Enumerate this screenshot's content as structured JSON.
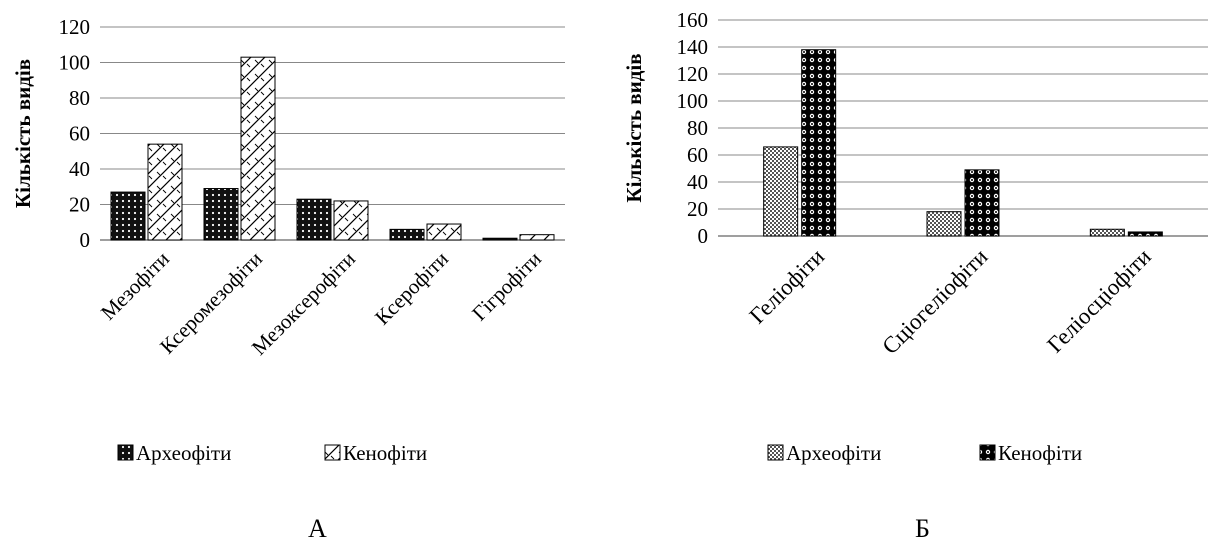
{
  "chart_data": [
    {
      "type": "bar",
      "panel_label": "А",
      "ylabel": "Кількість видів",
      "xlabel": "",
      "categories": [
        "Мезофіти",
        "Ксеромезофіти",
        "Мезоксерофіти",
        "Ксерофіти",
        "Гігрофіти"
      ],
      "series": [
        {
          "name": "Археофіти",
          "values": [
            27,
            29,
            23,
            6,
            1
          ],
          "pattern": "dots-dark"
        },
        {
          "name": "Кенофіти",
          "values": [
            54,
            103,
            22,
            9,
            3
          ],
          "pattern": "diagonal-light"
        }
      ],
      "ylim": [
        0,
        120
      ],
      "yticks": [
        0,
        20,
        40,
        60,
        80,
        100,
        120
      ],
      "grid": true,
      "legend_position": "bottom"
    },
    {
      "type": "bar",
      "panel_label": "Б",
      "ylabel": "Кількість видів",
      "xlabel": "",
      "categories": [
        "Геліофіти",
        "Сціогеліофіти",
        "Геліосціофіти"
      ],
      "series": [
        {
          "name": "Археофіти",
          "values": [
            66,
            18,
            5
          ],
          "pattern": "checker-grey"
        },
        {
          "name": "Кенофіти",
          "values": [
            138,
            49,
            3
          ],
          "pattern": "dots-black"
        }
      ],
      "ylim": [
        0,
        160
      ],
      "yticks": [
        0,
        20,
        40,
        60,
        80,
        100,
        120,
        140,
        160
      ],
      "grid": true,
      "legend_position": "bottom"
    }
  ]
}
